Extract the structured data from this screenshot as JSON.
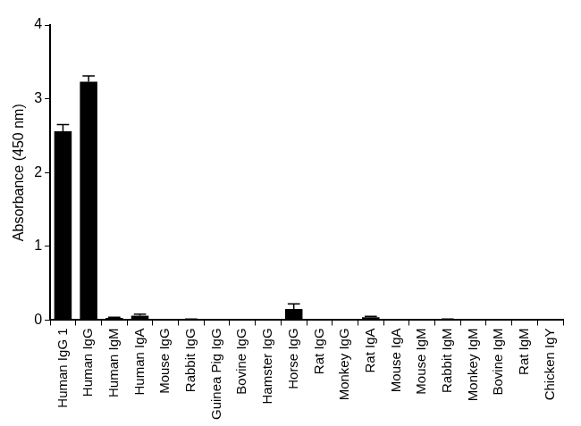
{
  "chart_data": {
    "type": "bar",
    "y_label": "Absorbance (450 nm)",
    "categories": [
      "Human IgG 1",
      "Human IgG",
      "Human IgM",
      "Human IgA",
      "Mouse IgG",
      "Rabbit IgG",
      "Guinea Pig IgG",
      "Bovine IgG",
      "Hamster IgG",
      "Horse IgG",
      "Rat IgG",
      "Monkey IgG",
      "Rat IgA",
      "Mouse IgA",
      "Mouse IgM",
      "Rabbit IgM",
      "Monkey IgM",
      "Bovine IgM",
      "Rat IgM",
      "Chicken IgY"
    ],
    "values": [
      2.56,
      3.23,
      0.03,
      0.06,
      0.005,
      0.01,
      0,
      0,
      0,
      0.15,
      0,
      0,
      0.04,
      0,
      0,
      0.01,
      0,
      0,
      0,
      0
    ],
    "errors": [
      0.09,
      0.08,
      0.01,
      0.02,
      0,
      0.005,
      0,
      0,
      0,
      0.07,
      0,
      0,
      0.01,
      0,
      0,
      0.005,
      0,
      0,
      0,
      0
    ],
    "color": "#000000",
    "ylim": [
      0,
      4
    ],
    "yticks": [
      0,
      1,
      2,
      3,
      4
    ],
    "grid": false
  }
}
